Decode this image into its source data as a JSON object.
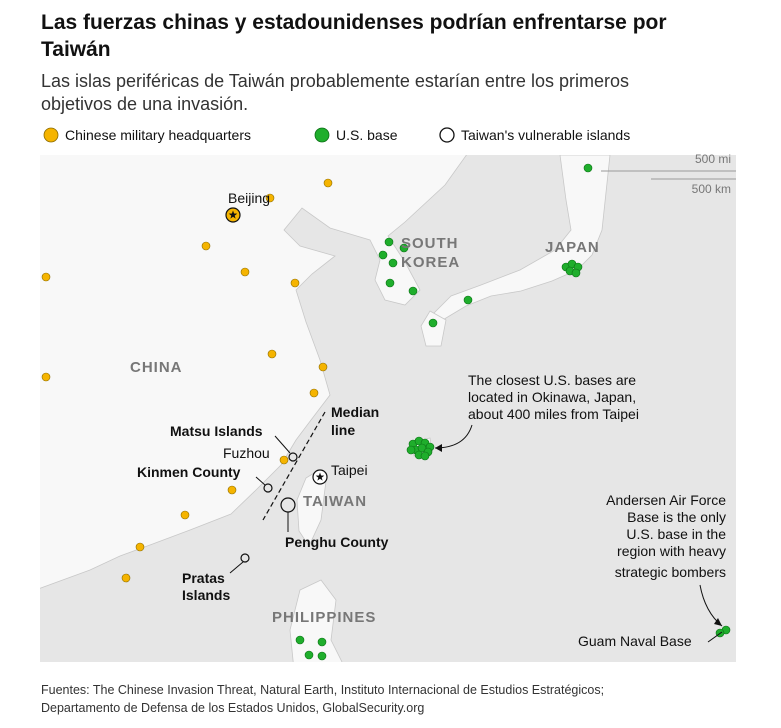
{
  "header": {
    "title": [
      "Las fuerzas chinas y estadounidenses podrían enfrentarse por",
      "Taiwán"
    ],
    "subtitle": [
      "Las islas periféricas de Taiwán probablemente estarían entre los primeros",
      "objetivos de una invasión."
    ]
  },
  "legend": [
    "Chinese military headquarters",
    "U.S. base",
    "Taiwan's vulnerable islands"
  ],
  "scale": [
    "500 mi",
    "500 km"
  ],
  "map": {
    "countries": {
      "china": "CHINA",
      "south_korea": [
        "SOUTH",
        "KOREA"
      ],
      "japan": "JAPAN",
      "taiwan": "TAIWAN",
      "philippines": "PHILIPPINES"
    },
    "places": {
      "beijing": "Beijing",
      "fuzhou": "Fuzhou",
      "taipei": "Taipei",
      "guam": "Guam Naval Base"
    },
    "islands": {
      "matsu": "Matsu Islands",
      "kinmen": "Kinmen County",
      "penghu": "Penghu County",
      "pratas": [
        "Pratas",
        "Islands"
      ]
    },
    "median_line": [
      "Median",
      "line"
    ],
    "annotations": {
      "okinawa": [
        "The closest U.S. bases are",
        "located in Okinawa, Japan,",
        "about 400 miles from Taipei"
      ],
      "andersen": [
        "Andersen Air Force",
        "Base is the only",
        "U.S. base in the",
        "region with heavy",
        "strategic bombers"
      ]
    }
  },
  "footer": {
    "sources": [
      "Fuentes: The Chinese Invasion Threat, Natural Earth, Instituto Internacional de Estudios Estratégicos;",
      "Departamento de Defensa de los Estados Unidos, GlobalSecurity.org"
    ]
  }
}
